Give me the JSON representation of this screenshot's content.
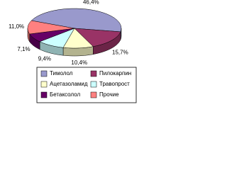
{
  "chart_data": {
    "type": "pie",
    "categories": [
      "Тимолол",
      "Пилокарпин",
      "Ацетазоламид",
      "Травопрост",
      "Бетаксолол",
      "Прочие"
    ],
    "values": [
      46.4,
      15.7,
      10.4,
      9.4,
      7.1,
      11.0
    ],
    "value_labels": [
      "46,4%",
      "15,7%",
      "10,4%",
      "9,4%",
      "7,1%",
      "11,0%"
    ],
    "colors": [
      "#9999cc",
      "#993366",
      "#ffffcc",
      "#ccffff",
      "#660066",
      "#ff8080"
    ]
  }
}
